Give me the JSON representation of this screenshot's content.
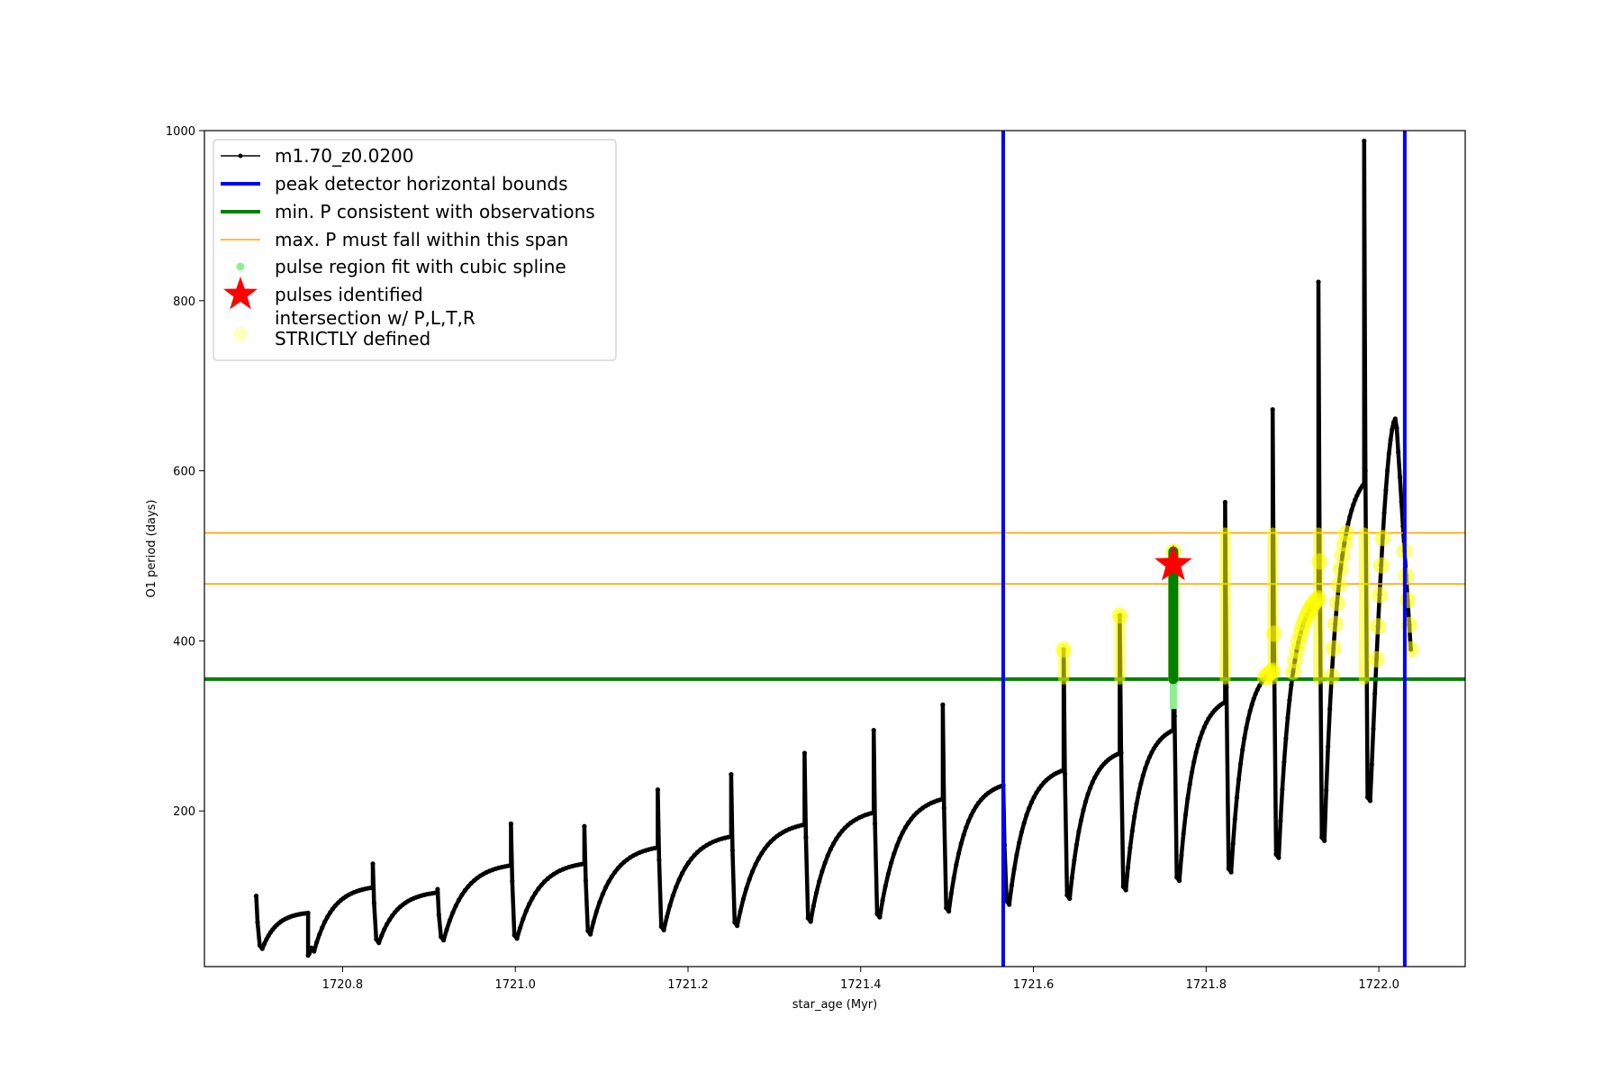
{
  "chart_data": {
    "type": "line",
    "xlabel": "star_age (Myr)",
    "ylabel": "O1 period (days)",
    "xlim": [
      1720.64,
      1722.1
    ],
    "ylim": [
      17,
      1000
    ],
    "x_ticks": [
      1720.8,
      1721.0,
      1721.2,
      1721.4,
      1721.6,
      1721.8,
      1722.0
    ],
    "x_tick_labels": [
      "1720.8",
      "1721.0",
      "1721.2",
      "1721.4",
      "1721.6",
      "1721.8",
      "1722.0"
    ],
    "y_ticks": [
      200,
      400,
      600,
      800,
      1000
    ],
    "y_tick_labels": [
      "200",
      "400",
      "600",
      "800",
      "1000"
    ],
    "grid": false,
    "legend_position": "top-left",
    "colors": {
      "model_track": "#000000",
      "peak_bounds": "#0000ff",
      "min_period": "#008000",
      "max_period_span": "#ffa500",
      "spline_fit": "#90ee90",
      "pulse_star": "#ff0000",
      "intersection": "#ffff00"
    },
    "legend": [
      {
        "label": "m1.70_z0.0200",
        "marker": "line-dot"
      },
      {
        "label": "peak detector horizontal bounds",
        "marker": "thick-line"
      },
      {
        "label": "min. P consistent with observations",
        "marker": "thick-line"
      },
      {
        "label": "max. P must fall within this span",
        "marker": "thin-line"
      },
      {
        "label": "pulse region fit with cubic spline",
        "marker": "dot"
      },
      {
        "label": "pulses identified",
        "marker": "star"
      },
      {
        "label": "intersection w/ P,L,T,R\nSTRICTLY defined",
        "marker": "circle"
      }
    ],
    "vertical_lines": [
      1721.565,
      1722.03
    ],
    "min_period_line": 355,
    "max_period_span": [
      467,
      527
    ],
    "pulses_identified": [
      {
        "x": 1721.762,
        "y": 490
      }
    ],
    "series": [
      {
        "name": "m1.70_z0.0200",
        "pulses": [
          {
            "t": 1720.7,
            "spike": 100,
            "trough": 38,
            "peak": 80
          },
          {
            "t": 1720.76,
            "spike": 30,
            "trough": 35,
            "peak": 110
          },
          {
            "t": 1720.835,
            "spike": 138,
            "trough": 45,
            "peak": 104
          },
          {
            "t": 1720.91,
            "spike": 108,
            "trough": 48,
            "peak": 136
          },
          {
            "t": 1720.995,
            "spike": 185,
            "trough": 50,
            "peak": 138
          },
          {
            "t": 1721.08,
            "spike": 182,
            "trough": 55,
            "peak": 157
          },
          {
            "t": 1721.165,
            "spike": 225,
            "trough": 60,
            "peak": 170
          },
          {
            "t": 1721.25,
            "spike": 243,
            "trough": 65,
            "peak": 184
          },
          {
            "t": 1721.335,
            "spike": 268,
            "trough": 70,
            "peak": 198
          },
          {
            "t": 1721.415,
            "spike": 295,
            "trough": 75,
            "peak": 214
          },
          {
            "t": 1721.495,
            "spike": 325,
            "trough": 82,
            "peak": 230
          },
          {
            "t": 1721.565,
            "spike": 230,
            "trough": 90,
            "peak": 248
          },
          {
            "t": 1721.635,
            "spike": 390,
            "trough": 97,
            "peak": 268
          },
          {
            "t": 1721.7,
            "spike": 430,
            "trough": 107,
            "peak": 295
          },
          {
            "t": 1721.762,
            "spike": 505,
            "trough": 118,
            "peak": 328
          },
          {
            "t": 1721.822,
            "spike": 563,
            "trough": 128,
            "peak": 365
          },
          {
            "t": 1721.877,
            "spike": 672,
            "trough": 145,
            "peak": 450
          },
          {
            "t": 1721.93,
            "spike": 822,
            "trough": 165,
            "peak": 585
          },
          {
            "t": 1721.983,
            "spike": 988,
            "trough": 212,
            "peak": 662
          }
        ],
        "end": {
          "t": 1722.037,
          "p": 390
        }
      }
    ]
  }
}
